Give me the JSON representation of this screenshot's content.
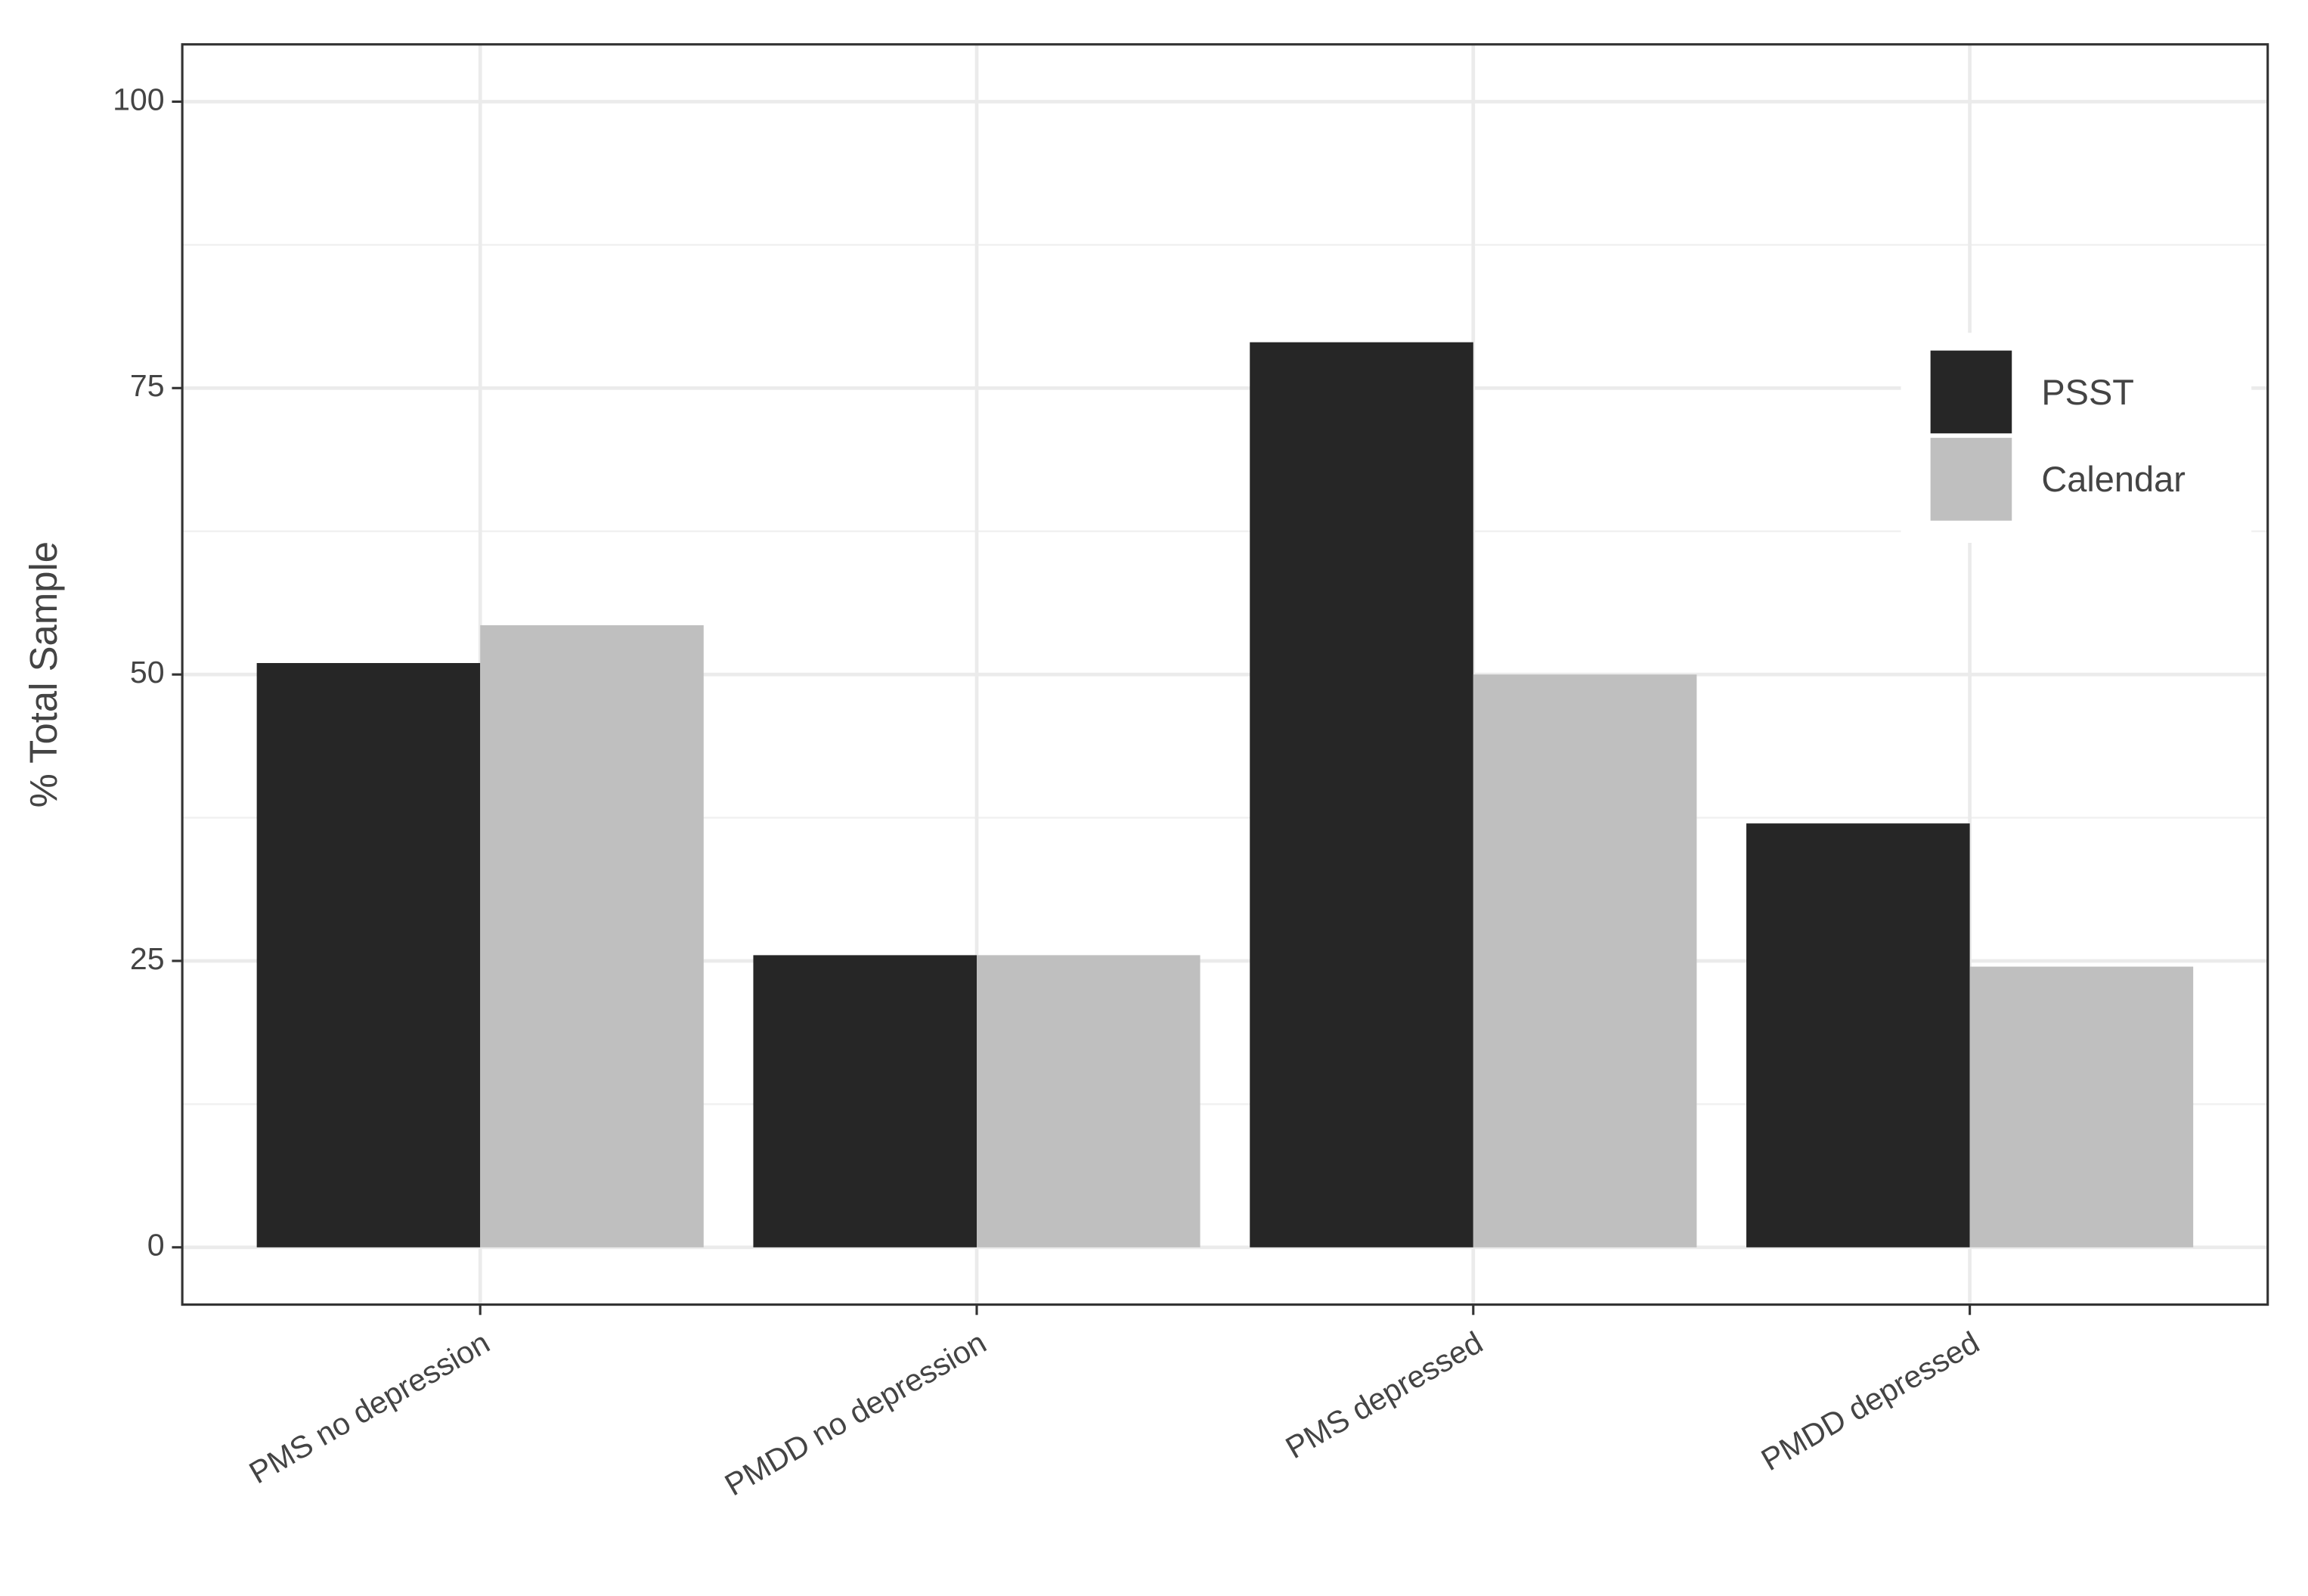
{
  "chart_data": {
    "type": "bar",
    "y_label": "% Total Sample",
    "categories": [
      "PMS no depression",
      "PMDD no depression",
      "PMS depressed",
      "PMDD depressed"
    ],
    "series": [
      {
        "name": "PSST",
        "color": "#262626",
        "values": [
          51,
          25.5,
          79,
          37
        ]
      },
      {
        "name": "Calendar",
        "color": "#bfbfbf",
        "values": [
          54.3,
          25.5,
          50,
          24.5
        ]
      }
    ],
    "ylim": [
      -5,
      105
    ],
    "yticks": [
      0,
      25,
      50,
      75,
      100
    ],
    "grid": true,
    "legend": "right"
  }
}
